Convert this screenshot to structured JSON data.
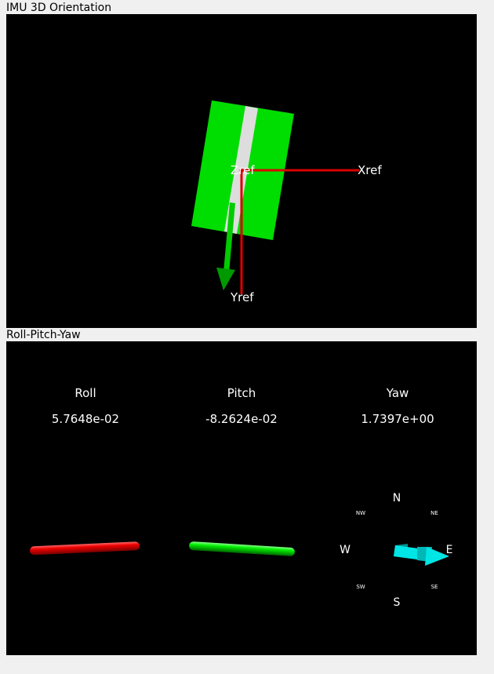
{
  "panels": {
    "orientation": {
      "title": "IMU 3D Orientation"
    },
    "rpy": {
      "title": "Roll-Pitch-Yaw"
    }
  },
  "axes": {
    "x_label": "Xref",
    "y_label": "Yref",
    "z_label": "Zref"
  },
  "rpy": {
    "roll": {
      "label": "Roll",
      "value": "5.7648e-02"
    },
    "pitch": {
      "label": "Pitch",
      "value": "-8.2624e-02"
    },
    "yaw": {
      "label": "Yaw",
      "value": "1.7397e+00"
    }
  },
  "compass": {
    "n": "N",
    "ne": "NE",
    "e": "E",
    "se": "SE",
    "s": "S",
    "sw": "SW",
    "w": "W",
    "nw": "NW"
  },
  "colors": {
    "background": "#000000",
    "board": "#00dd00",
    "stripe": "#dddddd",
    "axis": "#dd0000",
    "roll_bar": "#ee0000",
    "pitch_bar": "#00ee00",
    "yaw_arrow": "#00e5e5"
  }
}
